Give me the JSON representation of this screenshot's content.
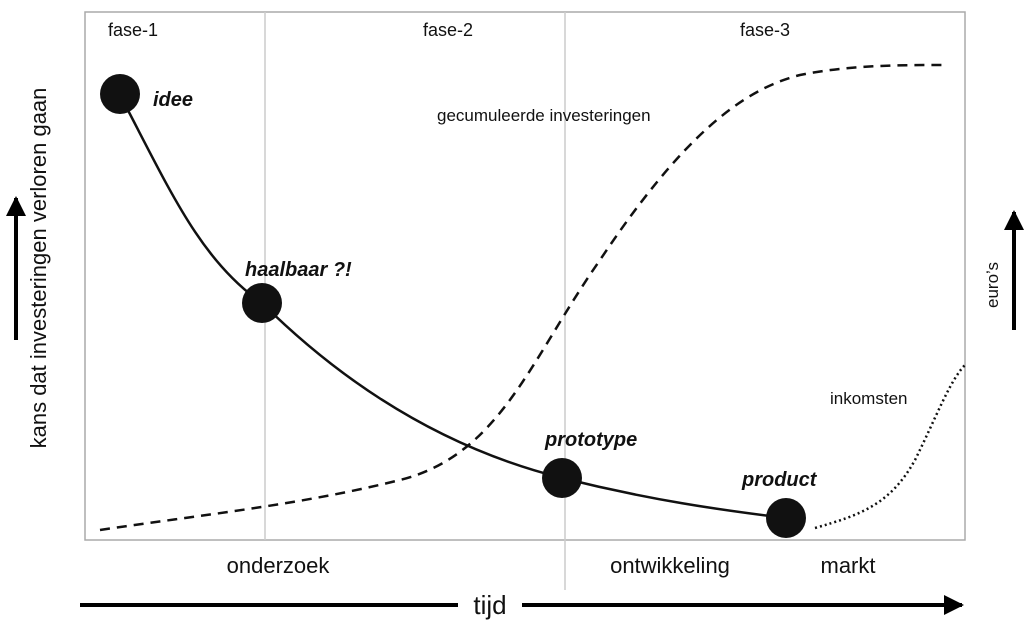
{
  "phases": [
    "fase-1",
    "fase-2",
    "fase-3"
  ],
  "nodes": [
    {
      "label": "idee"
    },
    {
      "label": "haalbaar ?!"
    },
    {
      "label": "prototype"
    },
    {
      "label": "product"
    }
  ],
  "curves": {
    "investments": "gecumuleerde investeringen",
    "income": "inkomsten"
  },
  "stages": [
    "onderzoek",
    "ontwikkeling",
    "markt"
  ],
  "x_axis": "tijd",
  "y_axis_left": "kans dat investeringen verloren gaan",
  "y_axis_right": "euro’s"
}
